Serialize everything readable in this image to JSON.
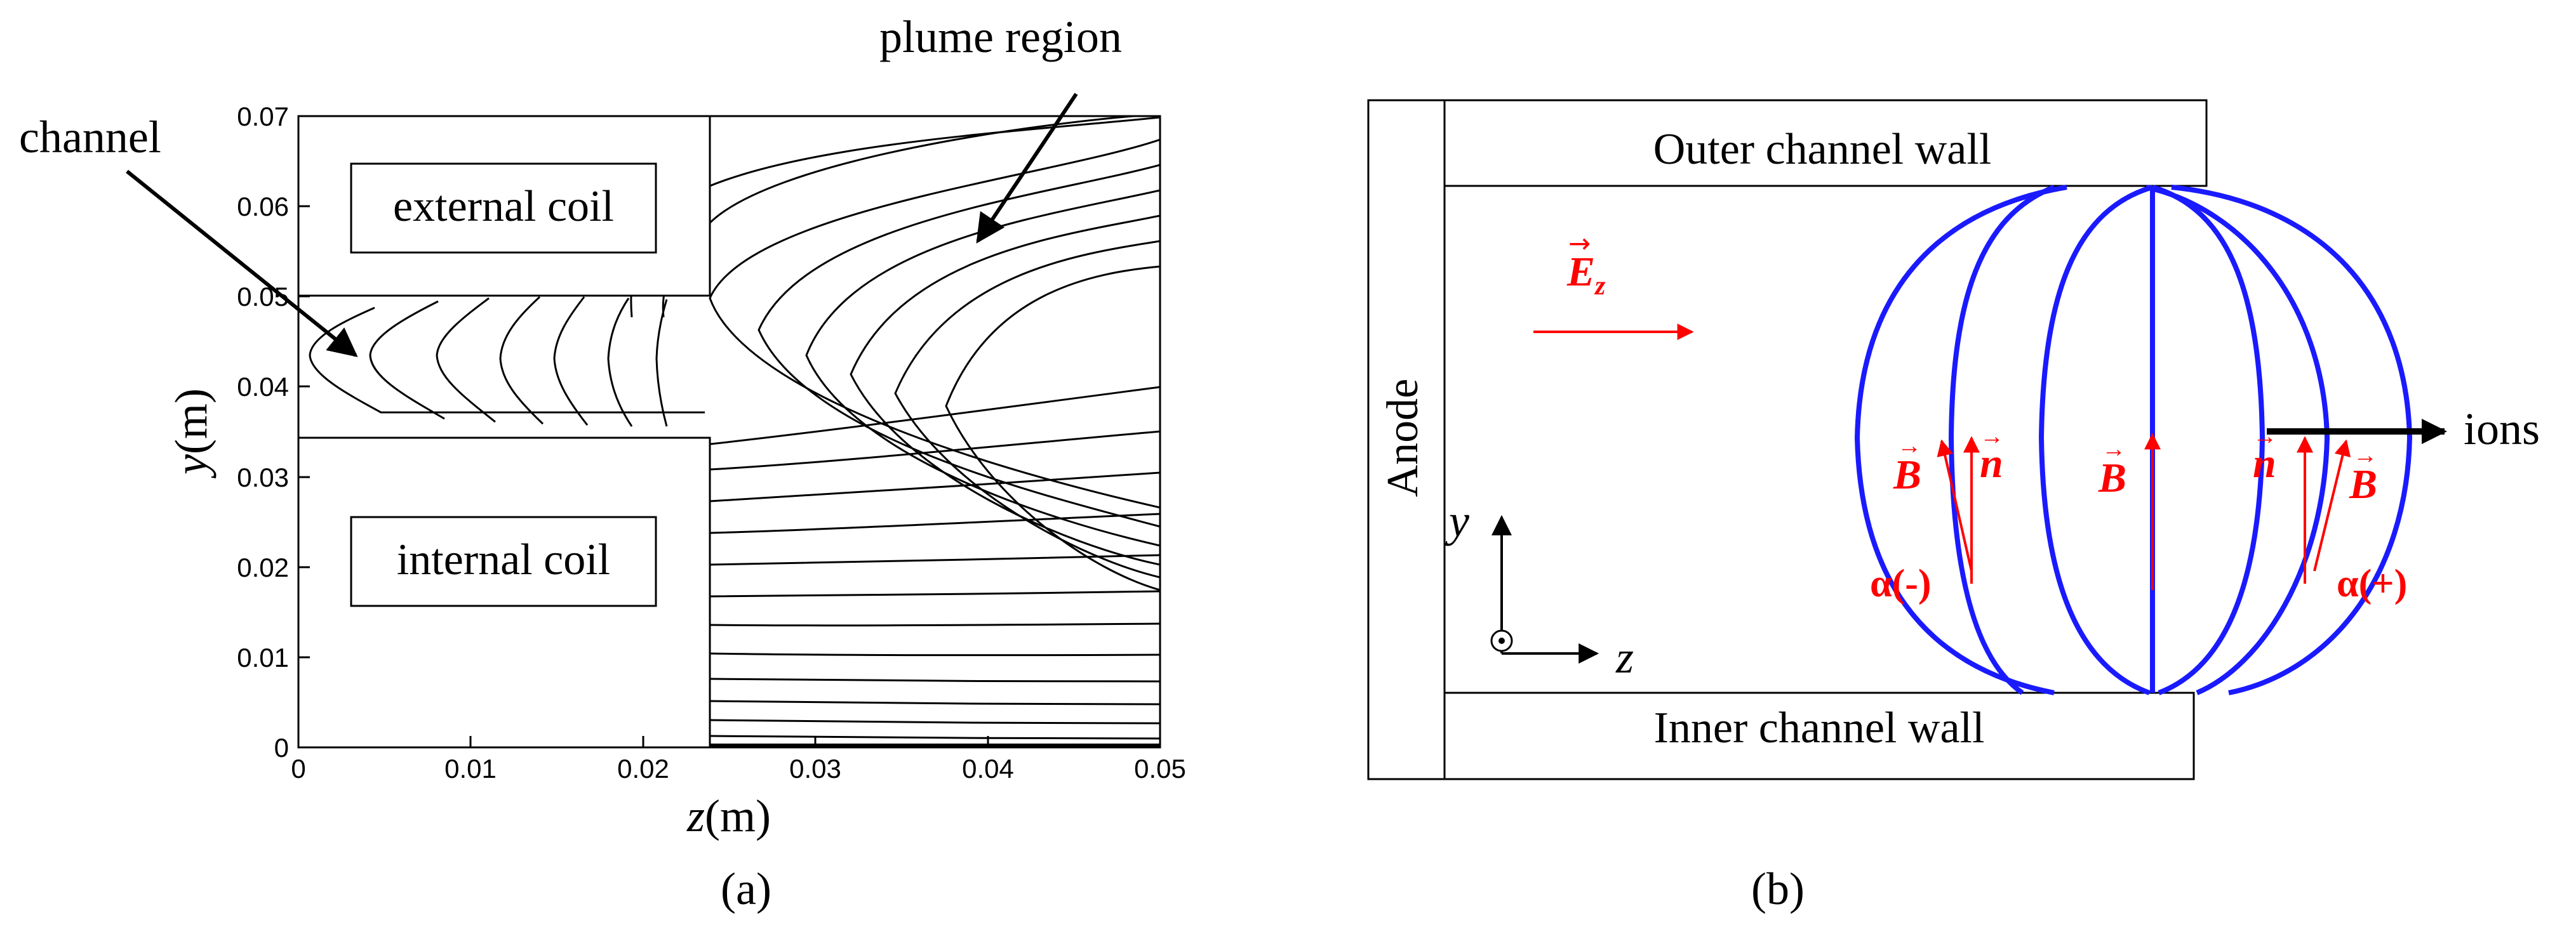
{
  "panel_a": {
    "caption": "(a)",
    "x_axis": {
      "var": "z",
      "unit": "(m)",
      "ticks": [
        "0",
        "0.01",
        "0.02",
        "0.03",
        "0.04",
        "0.05"
      ]
    },
    "y_axis": {
      "var": "y",
      "unit": "(m)",
      "ticks": [
        "0",
        "0.01",
        "0.02",
        "0.03",
        "0.04",
        "0.05",
        "0.06",
        "0.07"
      ]
    },
    "boxes": {
      "external": "external coil",
      "internal": "internal coil"
    },
    "callouts": {
      "channel": "channel",
      "plume": "plume region"
    }
  },
  "panel_b": {
    "caption": "(b)",
    "outer_wall": "Outer channel wall",
    "inner_wall": "Inner channel wall",
    "anode": "Anode",
    "e_field": "E",
    "e_sub": "z",
    "b_vec": "B",
    "n_vec": "n",
    "alpha_neg": "α(-)",
    "alpha_pos": "α(+)",
    "ions": "ions",
    "axis_y": "y",
    "axis_z": "z"
  },
  "colors": {
    "field_line": "#1a1aff",
    "vector": "#ff0000",
    "ink": "#000000"
  }
}
